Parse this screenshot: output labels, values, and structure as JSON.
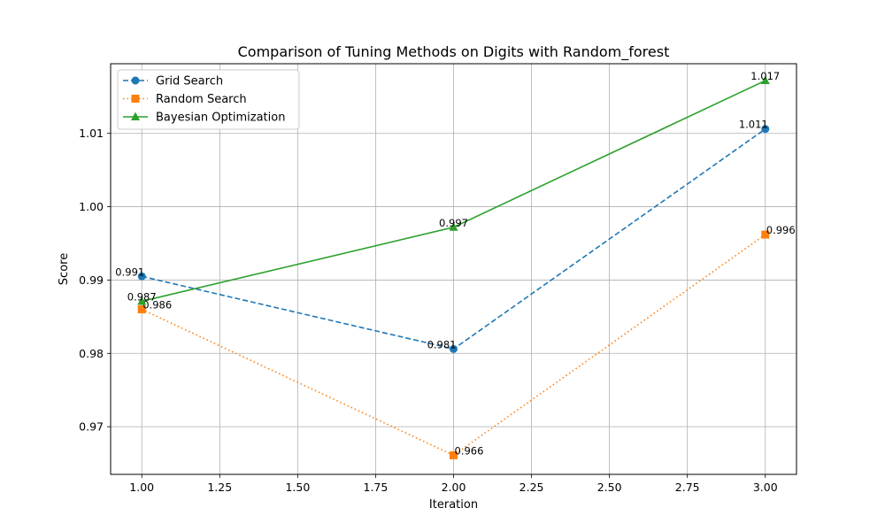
{
  "chart_data": {
    "type": "line",
    "title": "Comparison of Tuning Methods on Digits with Random_forest",
    "xlabel": "Iteration",
    "ylabel": "Score",
    "xlim": [
      0.9,
      3.1
    ],
    "ylim": [
      0.9635,
      1.0195
    ],
    "grid": true,
    "legend_position": "top-left",
    "x": [
      1,
      2,
      3
    ],
    "x_ticks": [
      1.0,
      1.25,
      1.5,
      1.75,
      2.0,
      2.25,
      2.5,
      2.75,
      3.0
    ],
    "x_tick_labels": [
      "1.00",
      "1.25",
      "1.50",
      "1.75",
      "2.00",
      "2.25",
      "2.50",
      "2.75",
      "3.00"
    ],
    "y_ticks": [
      0.97,
      0.98,
      0.99,
      1.0,
      1.01
    ],
    "y_tick_labels": [
      "0.97",
      "0.98",
      "0.99",
      "1.00",
      "1.01"
    ],
    "series": [
      {
        "name": "Grid Search",
        "color": "#1f77b4",
        "line_style": "dashed",
        "marker": "circle",
        "values": [
          0.9905,
          0.9806,
          1.0106
        ],
        "labels": [
          "0.991",
          "0.981",
          "1.011"
        ],
        "label_align": [
          "end",
          "end",
          "end"
        ]
      },
      {
        "name": "Random Search",
        "color": "#ff7f0e",
        "line_style": "dotted",
        "marker": "square",
        "values": [
          0.986,
          0.9661,
          0.9962
        ],
        "labels": [
          "0.986",
          "0.966",
          "0.996"
        ],
        "label_align": [
          "start",
          "start",
          "start"
        ]
      },
      {
        "name": "Bayesian Optimization",
        "color": "#2ca02c",
        "line_style": "solid",
        "marker": "triangle",
        "values": [
          0.9871,
          0.9972,
          1.0172
        ],
        "labels": [
          "0.987",
          "0.997",
          "1.017"
        ],
        "label_align": [
          "middle",
          "middle",
          "middle"
        ]
      }
    ]
  }
}
